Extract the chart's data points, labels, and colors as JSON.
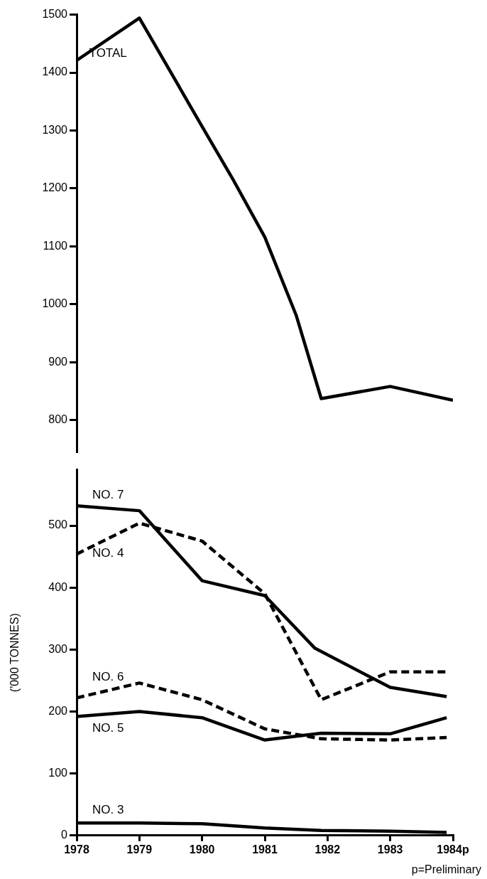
{
  "chart_data": [
    {
      "type": "line",
      "xlim": [
        1978,
        1984
      ],
      "ylim": [
        745,
        1500
      ],
      "yticks": [
        800,
        900,
        1000,
        1100,
        1200,
        1300,
        1400,
        1500
      ],
      "tick_labels": "y",
      "grid": false,
      "legend": false,
      "marker": "none",
      "series": [
        {
          "name": "TOTAL",
          "color": "#000000",
          "line_style": "solid",
          "x": [
            1978,
            1979,
            1980,
            1980.5,
            1981,
            1981.5,
            1981.9,
            1983,
            1984
          ],
          "values": [
            1421,
            1494,
            1307,
            1214,
            1116,
            981,
            837,
            858,
            834
          ]
        }
      ]
    },
    {
      "type": "line",
      "xlim": [
        1978,
        1984
      ],
      "ylim": [
        0,
        590
      ],
      "xticks": [
        1978,
        1979,
        1980,
        1981,
        1982,
        1983,
        {
          "value": 1984,
          "label": "1984p"
        }
      ],
      "yticks": [
        0,
        100,
        200,
        300,
        400,
        500
      ],
      "ylabel": "('000 TONNES)",
      "grid": false,
      "legend": false,
      "marker": "none",
      "annotations": [
        "p=Preliminary"
      ],
      "series": [
        {
          "name": "NO. 7",
          "color": "#000000",
          "line_style": "solid",
          "x": [
            1978,
            1979,
            1980,
            1981,
            1981.8,
            1983,
            1983.9
          ],
          "values": [
            532,
            524,
            411,
            387,
            302,
            239,
            224
          ]
        },
        {
          "name": "NO. 4",
          "color": "#000000",
          "line_style": "dashed",
          "x": [
            1978,
            1979,
            1980,
            1981,
            1981.9,
            1983,
            1983.9
          ],
          "values": [
            454,
            504,
            475,
            390,
            219,
            264,
            264
          ]
        },
        {
          "name": "NO. 6",
          "color": "#000000",
          "line_style": "dashed",
          "x": [
            1978,
            1979,
            1980,
            1981,
            1981.9,
            1983,
            1983.9
          ],
          "values": [
            222,
            246,
            219,
            172,
            156,
            154,
            158
          ]
        },
        {
          "name": "NO. 5",
          "color": "#000000",
          "line_style": "solid",
          "x": [
            1978,
            1979,
            1980,
            1981,
            1981.9,
            1983,
            1983.9
          ],
          "values": [
            192,
            200,
            190,
            154,
            165,
            164,
            190
          ]
        },
        {
          "name": "NO. 3",
          "color": "#000000",
          "line_style": "solid",
          "x": [
            1978,
            1979,
            1980,
            1981,
            1981.9,
            1983,
            1983.9
          ],
          "values": [
            20,
            20,
            19,
            12,
            8,
            7,
            5
          ]
        }
      ]
    }
  ]
}
